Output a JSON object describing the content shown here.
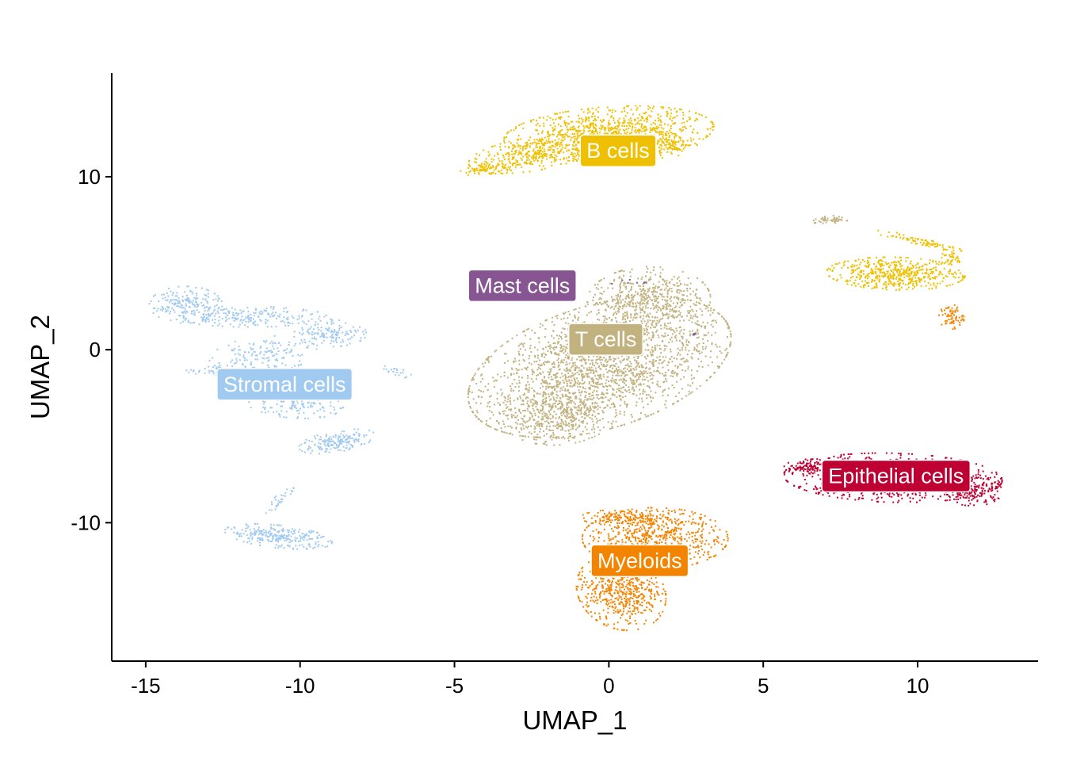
{
  "chart_data": {
    "type": "scatter",
    "title": "",
    "xlabel": "UMAP_1",
    "ylabel": "UMAP_2",
    "xlim": [
      -16.1,
      13.9
    ],
    "ylim": [
      -18.0,
      16.0
    ],
    "xticks": [
      -15,
      -10,
      -5,
      0,
      5,
      10
    ],
    "yticks": [
      -10,
      0,
      10
    ],
    "xtick_labels": [
      "-15",
      "-10",
      "-5",
      "0",
      "5",
      "10"
    ],
    "ytick_labels": [
      "-10",
      "0",
      "10"
    ],
    "grid": false,
    "legend": "none",
    "clusters": [
      {
        "name": "B cells",
        "color": "#EFC000",
        "label_x": 0.3,
        "label_y": 11.5,
        "blobs": [
          {
            "cx": 0.0,
            "cy": 12.5,
            "rx": 2.9,
            "ry": 1.3,
            "angle": 8,
            "n": 900
          },
          {
            "cx": -2.5,
            "cy": 11.3,
            "rx": 1.8,
            "ry": 0.8,
            "angle": 18,
            "n": 320
          },
          {
            "cx": -4.0,
            "cy": 10.4,
            "rx": 0.7,
            "ry": 0.25,
            "angle": 10,
            "n": 70
          },
          {
            "cx": 1.8,
            "cy": 11.8,
            "rx": 0.9,
            "ry": 0.6,
            "angle": 0,
            "n": 140
          }
        ]
      },
      {
        "name": "B cells",
        "color": "#EFC000",
        "blobs": [
          {
            "cx": 9.3,
            "cy": 4.4,
            "rx": 1.9,
            "ry": 0.8,
            "angle": -3,
            "n": 520
          },
          {
            "cx": 10.0,
            "cy": 6.3,
            "rx": 1.3,
            "ry": 0.2,
            "angle": -22,
            "n": 80
          },
          {
            "cx": 11.0,
            "cy": 5.3,
            "rx": 0.5,
            "ry": 0.4,
            "angle": 0,
            "n": 40
          }
        ]
      },
      {
        "name": "T cells",
        "color": "#C2B280",
        "label_x": -0.1,
        "label_y": 0.6,
        "blobs": [
          {
            "cx": -0.3,
            "cy": -1.0,
            "rx": 4.2,
            "ry": 2.7,
            "angle": 42,
            "n": 2100
          },
          {
            "cx": 1.3,
            "cy": 2.9,
            "rx": 1.7,
            "ry": 1.6,
            "angle": 20,
            "n": 500
          },
          {
            "cx": -1.6,
            "cy": -3.8,
            "rx": 1.6,
            "ry": 1.4,
            "angle": 30,
            "n": 380
          }
        ]
      },
      {
        "name": "T cells",
        "color": "#C2B280",
        "blobs": [
          {
            "cx": 7.2,
            "cy": 7.5,
            "rx": 0.5,
            "ry": 0.2,
            "angle": 10,
            "n": 50
          }
        ]
      },
      {
        "name": "Mast cells",
        "color": "#875692",
        "label_x": -2.8,
        "label_y": 3.7,
        "blobs": [
          {
            "cx": 0.7,
            "cy": 3.9,
            "rx": 0.7,
            "ry": 0.2,
            "angle": 0,
            "n": 8
          },
          {
            "cx": 2.7,
            "cy": 0.8,
            "rx": 0.15,
            "ry": 0.3,
            "angle": 0,
            "n": 4
          }
        ]
      },
      {
        "name": "Stromal cells",
        "color": "#A1CAF1",
        "label_x": -10.5,
        "label_y": -2.0,
        "blobs": [
          {
            "cx": -13.7,
            "cy": 2.6,
            "rx": 1.0,
            "ry": 0.9,
            "angle": 0,
            "n": 190
          },
          {
            "cx": -11.6,
            "cy": 1.9,
            "rx": 2.1,
            "ry": 0.5,
            "angle": 0,
            "n": 210
          },
          {
            "cx": -9.0,
            "cy": 1.0,
            "rx": 1.0,
            "ry": 0.7,
            "angle": 0,
            "n": 140
          },
          {
            "cx": -11.2,
            "cy": -0.3,
            "rx": 1.5,
            "ry": 0.9,
            "angle": 15,
            "n": 150
          },
          {
            "cx": -10.2,
            "cy": -3.0,
            "rx": 1.4,
            "ry": 0.8,
            "angle": -10,
            "n": 200
          },
          {
            "cx": -8.8,
            "cy": -5.3,
            "rx": 1.1,
            "ry": 0.5,
            "angle": 20,
            "n": 180
          },
          {
            "cx": -12.5,
            "cy": -1.2,
            "rx": 1.0,
            "ry": 0.25,
            "angle": 0,
            "n": 60
          },
          {
            "cx": -6.9,
            "cy": -1.3,
            "rx": 0.5,
            "ry": 0.25,
            "angle": -25,
            "n": 20
          },
          {
            "cx": -10.7,
            "cy": -10.8,
            "rx": 1.5,
            "ry": 0.55,
            "angle": -12,
            "n": 260
          },
          {
            "cx": -10.7,
            "cy": -8.8,
            "rx": 0.2,
            "ry": 0.8,
            "angle": -30,
            "n": 30
          }
        ]
      },
      {
        "name": "Epithelial cells",
        "color": "#BE0032",
        "label_x": 9.3,
        "label_y": -7.3,
        "blobs": [
          {
            "cx": 9.2,
            "cy": -7.4,
            "rx": 3.0,
            "ry": 1.2,
            "angle": -3,
            "n": 850
          },
          {
            "cx": 11.8,
            "cy": -8.2,
            "rx": 0.8,
            "ry": 0.7,
            "angle": 0,
            "n": 160
          },
          {
            "cx": 6.5,
            "cy": -6.8,
            "rx": 0.7,
            "ry": 0.4,
            "angle": 0,
            "n": 100
          }
        ]
      },
      {
        "name": "Myeloids",
        "color": "#F38400",
        "label_x": 1.0,
        "label_y": -12.2,
        "blobs": [
          {
            "cx": 1.5,
            "cy": -10.9,
            "rx": 2.0,
            "ry": 1.5,
            "angle": 0,
            "n": 650
          },
          {
            "cx": 0.4,
            "cy": -14.0,
            "rx": 1.2,
            "ry": 1.9,
            "angle": 10,
            "n": 550
          },
          {
            "cx": 0.5,
            "cy": -9.7,
            "rx": 1.2,
            "ry": 0.4,
            "angle": 0,
            "n": 150
          }
        ]
      },
      {
        "name": "Myeloids",
        "color": "#F38400",
        "blobs": [
          {
            "cx": 11.1,
            "cy": 1.9,
            "rx": 0.35,
            "ry": 0.6,
            "angle": 0,
            "n": 70
          }
        ]
      }
    ]
  }
}
